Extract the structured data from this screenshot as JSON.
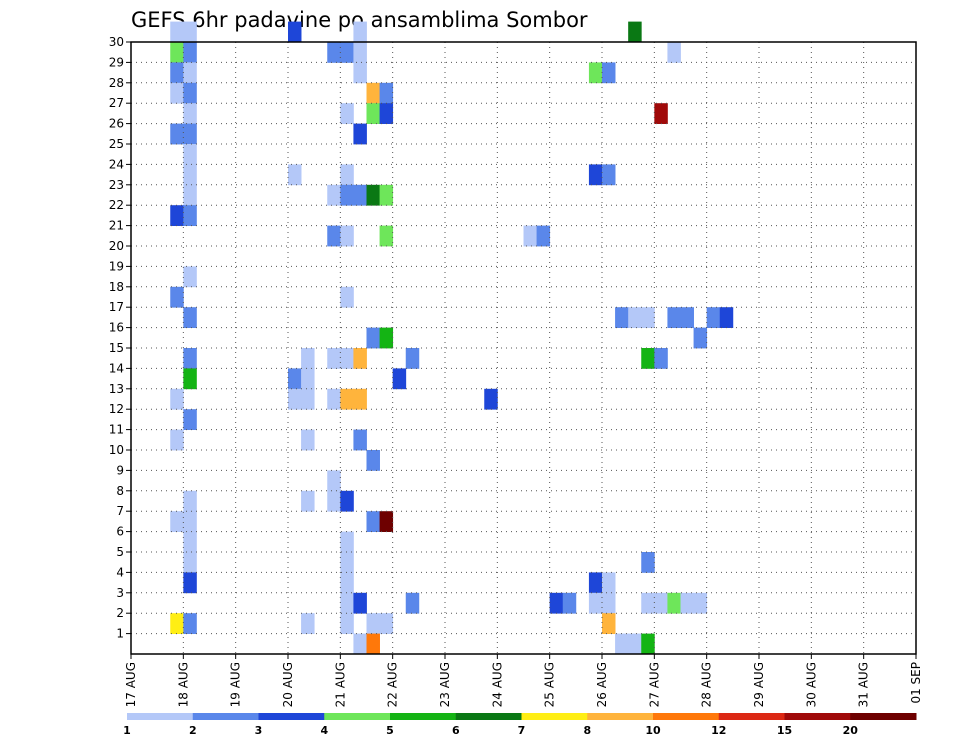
{
  "chart_data": {
    "type": "heatmap",
    "title": "GEFS 6hr padavine po ansamblima Sombor",
    "xlabel": "",
    "ylabel": "",
    "x_ticks": [
      "17 AUG",
      "18 AUG",
      "19 AUG",
      "20 AUG",
      "21 AUG",
      "22 AUG",
      "23 AUG",
      "24 AUG",
      "25 AUG",
      "26 AUG",
      "27 AUG",
      "28 AUG",
      "29 AUG",
      "30 AUG",
      "31 AUG",
      "01 SEP"
    ],
    "y_ticks": [
      1,
      2,
      3,
      4,
      5,
      6,
      7,
      8,
      9,
      10,
      11,
      12,
      13,
      14,
      15,
      16,
      17,
      18,
      19,
      20,
      21,
      22,
      23,
      24,
      25,
      26,
      27,
      28,
      29,
      30
    ],
    "xlim_days": [
      0,
      15
    ],
    "ylim": [
      0,
      30
    ],
    "grid": true,
    "legend_placement": "bottom",
    "colorbar": {
      "colors": [
        "#b4c8f8",
        "#5a87ea",
        "#1e46d8",
        "#6ee65a",
        "#14b414",
        "#0a7814",
        "#ffee14",
        "#ffb43c",
        "#ff780a",
        "#dc2814",
        "#a00a0a",
        "#6e0000"
      ],
      "labels": [
        "1",
        "2",
        "3",
        "4",
        "5",
        "6",
        "7",
        "8",
        "10",
        "12",
        "15",
        "20"
      ]
    },
    "cells_note": "each cell: [time index in 6h steps from 17 AUG 00Z, member, color class 0..11]",
    "cells": [
      [
        3,
        30,
        0
      ],
      [
        4,
        30,
        0
      ],
      [
        12,
        30,
        2
      ],
      [
        17,
        30,
        0
      ],
      [
        38,
        30,
        5
      ],
      [
        3,
        29,
        3
      ],
      [
        4,
        29,
        1
      ],
      [
        15,
        29,
        1
      ],
      [
        16,
        29,
        1
      ],
      [
        17,
        29,
        0
      ],
      [
        41,
        29,
        0
      ],
      [
        3,
        28,
        1
      ],
      [
        4,
        28,
        0
      ],
      [
        17,
        28,
        0
      ],
      [
        35,
        28,
        3
      ],
      [
        36,
        28,
        1
      ],
      [
        3,
        27,
        0
      ],
      [
        4,
        27,
        1
      ],
      [
        18,
        27,
        7
      ],
      [
        19,
        27,
        1
      ],
      [
        4,
        26,
        0
      ],
      [
        16,
        26,
        0
      ],
      [
        18,
        26,
        3
      ],
      [
        19,
        26,
        2
      ],
      [
        40,
        26,
        10
      ],
      [
        3,
        25,
        1
      ],
      [
        4,
        25,
        1
      ],
      [
        17,
        25,
        2
      ],
      [
        4,
        24,
        0
      ],
      [
        4,
        23,
        0
      ],
      [
        12,
        23,
        0
      ],
      [
        16,
        23,
        0
      ],
      [
        35,
        23,
        2
      ],
      [
        36,
        23,
        1
      ],
      [
        4,
        22,
        0
      ],
      [
        15,
        22,
        0
      ],
      [
        16,
        22,
        1
      ],
      [
        17,
        22,
        1
      ],
      [
        18,
        22,
        5
      ],
      [
        19,
        22,
        3
      ],
      [
        3,
        21,
        2
      ],
      [
        4,
        21,
        1
      ],
      [
        15,
        20,
        1
      ],
      [
        16,
        20,
        0
      ],
      [
        19,
        20,
        3
      ],
      [
        30,
        20,
        0
      ],
      [
        31,
        20,
        1
      ],
      [
        4,
        18,
        0
      ],
      [
        3,
        17,
        1
      ],
      [
        16,
        17,
        0
      ],
      [
        4,
        16,
        1
      ],
      [
        37,
        16,
        1
      ],
      [
        38,
        16,
        0
      ],
      [
        39,
        16,
        0
      ],
      [
        41,
        16,
        1
      ],
      [
        42,
        16,
        1
      ],
      [
        44,
        16,
        1
      ],
      [
        45,
        16,
        2
      ],
      [
        18,
        15,
        1
      ],
      [
        19,
        15,
        4
      ],
      [
        43,
        15,
        1
      ],
      [
        4,
        14,
        1
      ],
      [
        13,
        14,
        0
      ],
      [
        15,
        14,
        0
      ],
      [
        16,
        14,
        0
      ],
      [
        17,
        14,
        7
      ],
      [
        21,
        14,
        1
      ],
      [
        39,
        14,
        4
      ],
      [
        40,
        14,
        1
      ],
      [
        4,
        13,
        4
      ],
      [
        12,
        13,
        1
      ],
      [
        13,
        13,
        0
      ],
      [
        20,
        13,
        2
      ],
      [
        3,
        12,
        0
      ],
      [
        12,
        12,
        0
      ],
      [
        13,
        12,
        0
      ],
      [
        15,
        12,
        0
      ],
      [
        16,
        12,
        7
      ],
      [
        17,
        12,
        7
      ],
      [
        27,
        12,
        2
      ],
      [
        4,
        11,
        1
      ],
      [
        3,
        10,
        0
      ],
      [
        13,
        10,
        0
      ],
      [
        17,
        10,
        1
      ],
      [
        18,
        9,
        1
      ],
      [
        15,
        8,
        0
      ],
      [
        4,
        7,
        0
      ],
      [
        13,
        7,
        0
      ],
      [
        15,
        7,
        0
      ],
      [
        16,
        7,
        2
      ],
      [
        3,
        6,
        0
      ],
      [
        4,
        6,
        0
      ],
      [
        18,
        6,
        1
      ],
      [
        19,
        6,
        11
      ],
      [
        4,
        5,
        0
      ],
      [
        16,
        5,
        0
      ],
      [
        4,
        4,
        0
      ],
      [
        16,
        4,
        0
      ],
      [
        39,
        4,
        1
      ],
      [
        4,
        3,
        2
      ],
      [
        16,
        3,
        0
      ],
      [
        35,
        3,
        2
      ],
      [
        36,
        3,
        0
      ],
      [
        16,
        2,
        0
      ],
      [
        17,
        2,
        2
      ],
      [
        21,
        2,
        1
      ],
      [
        32,
        2,
        2
      ],
      [
        33,
        2,
        1
      ],
      [
        35,
        2,
        0
      ],
      [
        36,
        2,
        0
      ],
      [
        39,
        2,
        0
      ],
      [
        40,
        2,
        0
      ],
      [
        41,
        2,
        3
      ],
      [
        42,
        2,
        0
      ],
      [
        43,
        2,
        0
      ],
      [
        3,
        1,
        6
      ],
      [
        4,
        1,
        1
      ],
      [
        13,
        1,
        0
      ],
      [
        16,
        1,
        0
      ],
      [
        18,
        1,
        0
      ],
      [
        19,
        1,
        0
      ],
      [
        36,
        1,
        7
      ],
      [
        17,
        0,
        0
      ],
      [
        18,
        0,
        8
      ],
      [
        37,
        0,
        0
      ],
      [
        38,
        0,
        0
      ],
      [
        39,
        0,
        4
      ]
    ]
  }
}
